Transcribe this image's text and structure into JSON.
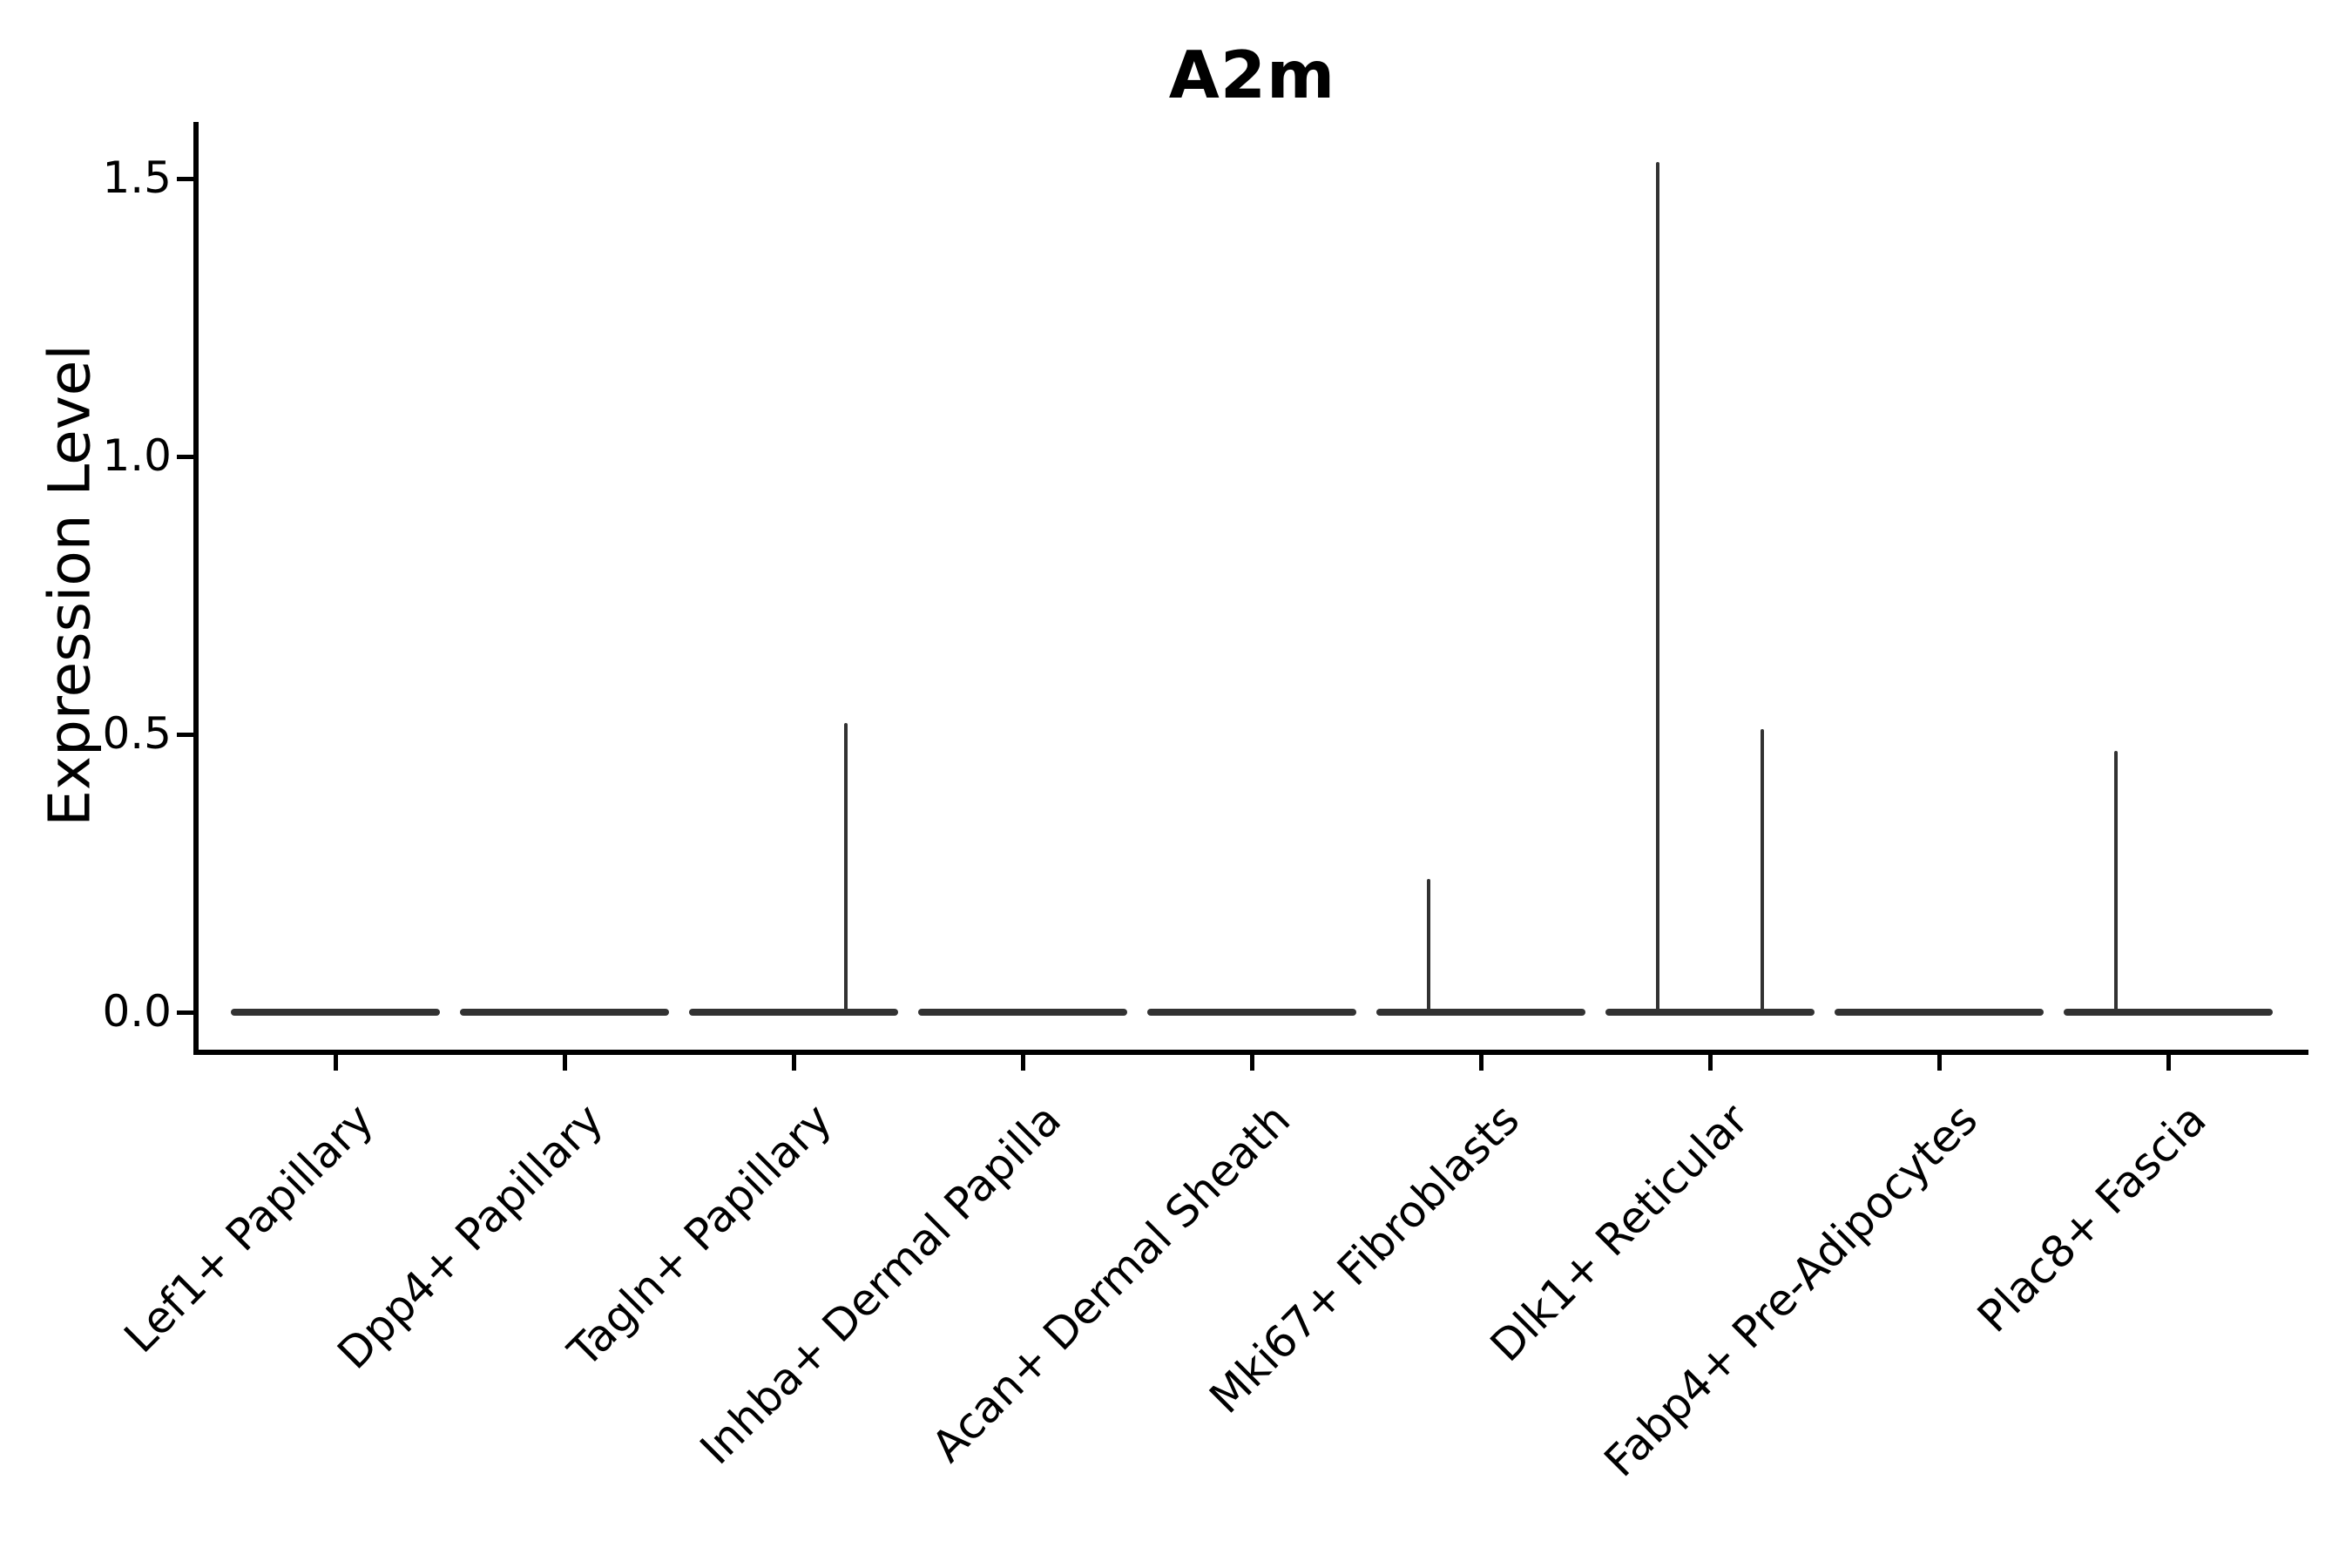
{
  "figure": {
    "title": "A2m"
  },
  "chart_data": {
    "type": "violin",
    "title": "A2m",
    "xlabel": "",
    "ylabel": "Expression Level",
    "ylim": [
      0,
      1.6
    ],
    "yticks": [
      0.0,
      0.5,
      1.0,
      1.5
    ],
    "ytick_labels": [
      "0.0",
      "0.5",
      "1.0",
      "1.5"
    ],
    "grid": false,
    "legend": null,
    "categories": [
      "Lef1+ Papillary",
      "Dpp4+ Papillary",
      "Tagln+ Papillary",
      "Inhba+ Dermal Papilla",
      "Acan+ Dermal Sheath",
      "Mki67+ Fibroblasts",
      "Dlk1+ Reticular",
      "Fabp4+ Pre-Adipocytes",
      "Plac8+ Fascia"
    ],
    "violins": [
      {
        "category": "Lef1+ Papillary",
        "bulk_value": 0,
        "spikes": []
      },
      {
        "category": "Dpp4+ Papillary",
        "bulk_value": 0,
        "spikes": []
      },
      {
        "category": "Tagln+ Papillary",
        "bulk_value": 0,
        "spikes": [
          {
            "offset_frac": 0.25,
            "max_value": 0.52
          }
        ]
      },
      {
        "category": "Inhba+ Dermal Papilla",
        "bulk_value": 0,
        "spikes": []
      },
      {
        "category": "Acan+ Dermal Sheath",
        "bulk_value": 0,
        "spikes": []
      },
      {
        "category": "Mki67+ Fibroblasts",
        "bulk_value": 0,
        "spikes": [
          {
            "offset_frac": -0.25,
            "max_value": 0.24
          }
        ]
      },
      {
        "category": "Dlk1+ Reticular",
        "bulk_value": 0,
        "spikes": [
          {
            "offset_frac": -0.25,
            "max_value": 1.53
          },
          {
            "offset_frac": 0.25,
            "max_value": 0.51
          }
        ]
      },
      {
        "category": "Fabp4+ Pre-Adipocytes",
        "bulk_value": 0,
        "spikes": []
      },
      {
        "category": "Plac8+ Fascia",
        "bulk_value": 0,
        "spikes": [
          {
            "offset_frac": -0.25,
            "max_value": 0.47
          }
        ]
      }
    ],
    "colors": {
      "violin_line": "#323232",
      "axis": "#000000",
      "text": "#000000",
      "background": "#ffffff"
    }
  }
}
